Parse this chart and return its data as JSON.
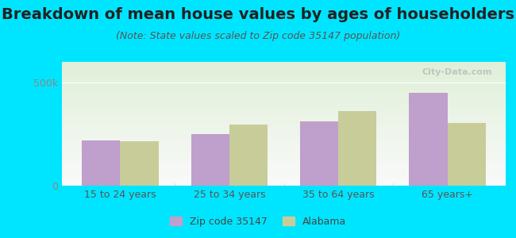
{
  "title": "Breakdown of mean house values by ages of householders",
  "subtitle": "(Note: State values scaled to Zip code 35147 population)",
  "categories": [
    "15 to 24 years",
    "25 to 34 years",
    "35 to 64 years",
    "65 years+"
  ],
  "zip_values": [
    220000,
    250000,
    310000,
    450000
  ],
  "state_values": [
    215000,
    295000,
    360000,
    305000
  ],
  "zip_color": "#bf9fcc",
  "state_color": "#c8cc99",
  "ylim": [
    0,
    600000
  ],
  "yticks": [
    0,
    500000
  ],
  "ytick_labels": [
    "0",
    "500k"
  ],
  "background_outer": "#00e5ff",
  "background_inner_top": "#e8f5e0",
  "background_inner_bottom": "#f5f5e8",
  "watermark": "City-Data.com",
  "legend_zip_label": "Zip code 35147",
  "legend_state_label": "Alabama",
  "bar_width": 0.35,
  "title_fontsize": 14,
  "subtitle_fontsize": 9,
  "tick_fontsize": 9,
  "legend_fontsize": 9
}
